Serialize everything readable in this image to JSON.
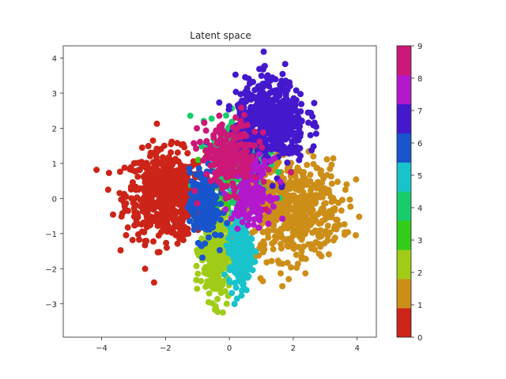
{
  "chart_data": {
    "type": "scatter",
    "title": "Latent space",
    "xlabel": "",
    "ylabel": "",
    "xlim": [
      -5.2,
      4.6
    ],
    "ylim": [
      -3.95,
      4.35
    ],
    "xticks": [
      -4,
      -2,
      0,
      2,
      4
    ],
    "yticks": [
      -3,
      -2,
      -1,
      0,
      1,
      2,
      3,
      4
    ],
    "grid": false,
    "colorbar": {
      "range": [
        0,
        9
      ],
      "ticks": [
        0,
        1,
        2,
        3,
        4,
        5,
        6,
        7,
        8,
        9
      ],
      "colors": [
        "#cc2418",
        "#cd8e18",
        "#a0cc18",
        "#33cc18",
        "#18cc6b",
        "#18c3cc",
        "#1855cc",
        "#4418cc",
        "#b318cc",
        "#cc1878"
      ]
    },
    "clusters": [
      {
        "class": 0,
        "color": "#cc2418",
        "center": [
          -2.0,
          0.1
        ],
        "spread": [
          0.62,
          0.62
        ],
        "count": 620
      },
      {
        "class": 1,
        "color": "#cd8e18",
        "center": [
          2.0,
          -0.3
        ],
        "spread": [
          0.75,
          0.7
        ],
        "count": 560
      },
      {
        "class": 2,
        "color": "#a0cc18",
        "center": [
          -0.45,
          -1.5
        ],
        "spread": [
          0.22,
          0.7
        ],
        "count": 340
      },
      {
        "class": 3,
        "color": "#33cc18",
        "center": [
          -0.2,
          0.3
        ],
        "spread": [
          0.3,
          0.5
        ],
        "count": 60
      },
      {
        "class": 4,
        "color": "#18cc6b",
        "center": [
          0.3,
          1.2
        ],
        "spread": [
          0.45,
          0.55
        ],
        "count": 300
      },
      {
        "class": 5,
        "color": "#18c3cc",
        "center": [
          0.35,
          -1.5
        ],
        "spread": [
          0.18,
          0.5
        ],
        "count": 260
      },
      {
        "class": 6,
        "color": "#1855cc",
        "center": [
          -0.8,
          -0.2
        ],
        "spread": [
          0.22,
          0.5
        ],
        "count": 240
      },
      {
        "class": 7,
        "color": "#4418cc",
        "center": [
          1.3,
          2.2
        ],
        "spread": [
          0.55,
          0.6
        ],
        "count": 560
      },
      {
        "class": 8,
        "color": "#b318cc",
        "center": [
          0.7,
          0.2
        ],
        "spread": [
          0.3,
          0.45
        ],
        "count": 180
      },
      {
        "class": 9,
        "color": "#cc1878",
        "center": [
          0.0,
          1.2
        ],
        "spread": [
          0.45,
          0.5
        ],
        "count": 220
      }
    ]
  }
}
